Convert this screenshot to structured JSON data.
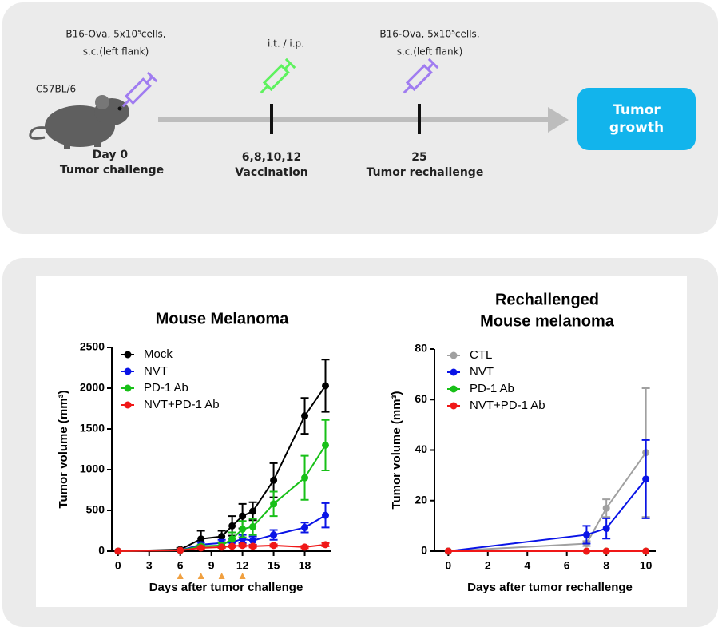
{
  "diagram": {
    "strain": "C57BL/6",
    "challenge_cells": [
      "B16-Ova, 5x10⁵cells,",
      "s.c.(left flank)"
    ],
    "route": "i.t. / i.p.",
    "rechallenge_cells": [
      "B16-Ova, 5x10⁵cells,",
      "s.c.(left flank)"
    ],
    "steps": [
      {
        "day": "Day 0",
        "label": "Tumor challenge"
      },
      {
        "day": "6,8,10,12",
        "label": "Vaccination"
      },
      {
        "day": "25",
        "label": "Tumor rechallenge"
      }
    ],
    "outcome": [
      "Tumor",
      "growth"
    ]
  },
  "chart_data": [
    {
      "type": "line",
      "title": [
        "Mouse Melanoma"
      ],
      "x_label": "Days after tumor challenge",
      "y_label": "Tumor volume (mm³)",
      "x": [
        0,
        6,
        8,
        10,
        11,
        12,
        13,
        15,
        18,
        20
      ],
      "xlim": [
        -0.6,
        20.5
      ],
      "xticks": [
        0,
        3,
        6,
        9,
        12,
        15,
        18
      ],
      "ylim": [
        0,
        2500
      ],
      "yticks": [
        0,
        500,
        1000,
        1500,
        2000,
        2500
      ],
      "vaccination_days": [
        6,
        8,
        10,
        12
      ],
      "vaccination_color": "#f0a040",
      "series": [
        {
          "name": "Mock",
          "color": "#000000",
          "values": [
            0,
            20,
            150,
            180,
            310,
            430,
            490,
            870,
            1660,
            2030
          ],
          "errors": [
            null,
            20,
            100,
            70,
            120,
            150,
            110,
            210,
            220,
            320
          ]
        },
        {
          "name": "NVT",
          "color": "#0a14e6",
          "values": [
            0,
            10,
            80,
            100,
            110,
            150,
            130,
            200,
            290,
            440
          ],
          "errors": [
            null,
            null,
            30,
            40,
            40,
            50,
            50,
            60,
            60,
            150
          ]
        },
        {
          "name": "PD-1 Ab",
          "color": "#18c018",
          "values": [
            0,
            10,
            60,
            70,
            150,
            270,
            300,
            580,
            900,
            1300
          ],
          "errors": [
            null,
            null,
            20,
            30,
            80,
            100,
            100,
            150,
            270,
            310
          ]
        },
        {
          "name": "NVT+PD-1 Ab",
          "color": "#f01818",
          "values": [
            0,
            10,
            40,
            50,
            60,
            70,
            60,
            70,
            50,
            80
          ],
          "errors": [
            null,
            null,
            10,
            10,
            10,
            15,
            15,
            15,
            15,
            20
          ]
        }
      ]
    },
    {
      "type": "line",
      "title": [
        "Rechallenged",
        "Mouse melanoma"
      ],
      "x_label": "Days after tumor rechallenge",
      "y_label": "Tumor volume (mm³)",
      "x": [
        0,
        7,
        8,
        10
      ],
      "xlim": [
        -0.7,
        10.5
      ],
      "xticks": [
        0,
        2,
        4,
        6,
        8,
        10
      ],
      "ylim": [
        0,
        80
      ],
      "yticks": [
        0,
        20,
        40,
        60,
        80
      ],
      "series": [
        {
          "name": "CTL",
          "color": "#a0a0a0",
          "values": [
            0,
            3,
            17,
            39
          ],
          "errors": [
            null,
            1,
            3.5,
            25.5
          ]
        },
        {
          "name": "NVT",
          "color": "#0a14e6",
          "values": [
            0,
            6.5,
            9,
            28.5
          ],
          "errors": [
            null,
            3.5,
            4,
            15.5
          ]
        },
        {
          "name": "PD-1 Ab",
          "color": "#18c018",
          "values": [
            0,
            0,
            0,
            0
          ],
          "errors": [
            null,
            null,
            null,
            null
          ]
        },
        {
          "name": "NVT+PD-1 Ab",
          "color": "#f01818",
          "values": [
            0,
            0,
            0,
            0
          ],
          "errors": [
            null,
            null,
            null,
            null
          ]
        }
      ]
    }
  ]
}
